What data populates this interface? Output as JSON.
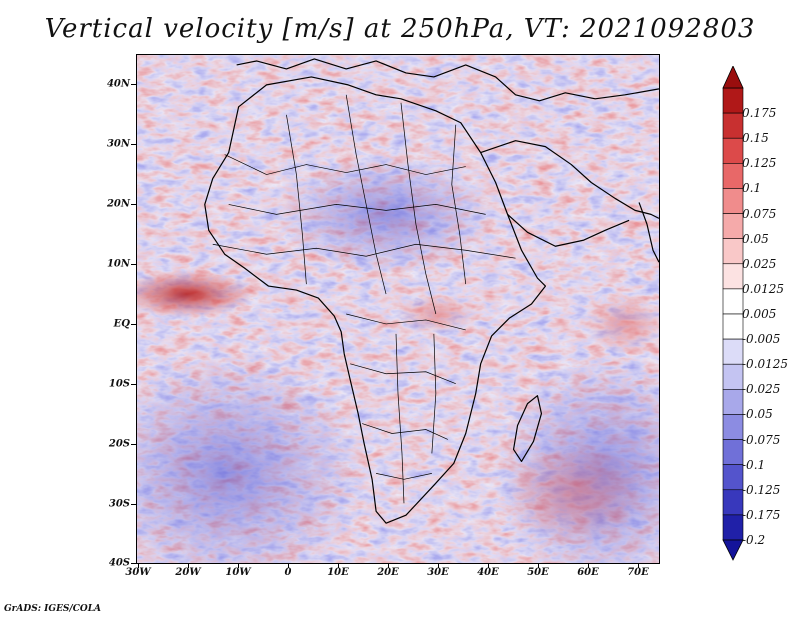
{
  "title": "Vertical velocity [m/s] at 250hPa, VT: 2021092803",
  "credit": "GrADS: IGES/COLA",
  "lat_labels": [
    "40N",
    "30N",
    "20N",
    "10N",
    "EQ",
    "10S",
    "20S",
    "30S",
    "40S"
  ],
  "lon_labels": [
    "30W",
    "20W",
    "10W",
    "0",
    "10E",
    "20E",
    "30E",
    "40E",
    "50E",
    "60E",
    "70E"
  ],
  "colorbar": {
    "labels": [
      "0.175",
      "0.15",
      "0.125",
      "0.1",
      "0.075",
      "0.05",
      "0.025",
      "0.0125",
      "0.005",
      "-0.005",
      "-0.0125",
      "-0.025",
      "-0.05",
      "-0.075",
      "-0.1",
      "-0.125",
      "-0.175",
      "-0.2"
    ],
    "colors": [
      "#b01818",
      "#c83030",
      "#dc4a4a",
      "#e86868",
      "#f08c8c",
      "#f5aaaa",
      "#f9c8c8",
      "#fce2e2",
      "#ffffff",
      "#ffffff",
      "#dcdcf8",
      "#c4c4f2",
      "#a8a8ea",
      "#8c8ce2",
      "#7070d8",
      "#5454cc",
      "#3838bc",
      "#2020a8"
    ],
    "top_arrow_color": "#9a0e0e",
    "bottom_arrow_color": "#14149a"
  },
  "field_colors": {
    "red": "#d84a4a",
    "blue": "#7070dc",
    "neutral": "#f4f0f8"
  }
}
